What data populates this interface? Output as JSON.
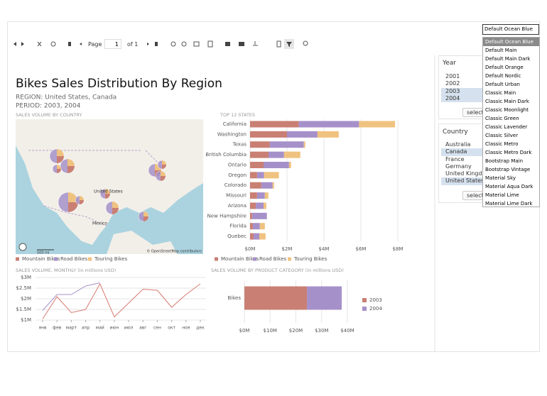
{
  "theme_selector": {
    "selected": "Default Ocean Blue",
    "options": [
      "Default Ocean Blue",
      "Default Main",
      "Default Main Dark",
      "Default Orange",
      "Default Nordic",
      "Default Urban",
      "Classic Main",
      "Classic Main Dark",
      "Classic Moonlight",
      "Classic Green",
      "Classic Lavender",
      "Classic Silver",
      "Classic Metro",
      "Classic Metro Dark",
      "Bootstrap Main",
      "Bootstrap Vintage",
      "Material Sky",
      "Material Aqua Dark",
      "Material Lime",
      "Material Lime Dark"
    ]
  },
  "toolbar": {
    "page_label": "Page",
    "page_number": 1,
    "page_count_label": "of 1"
  },
  "report": {
    "title": "Bikes Sales Distribution By Region",
    "region": "REGION: United States, Canada",
    "period": "PERIOD: 2003, 2004"
  },
  "parameters": {
    "year": {
      "label": "Year",
      "options": [
        "2001",
        "2002",
        "2003",
        "2004"
      ],
      "selected": [
        false,
        false,
        true,
        true
      ],
      "button": "select a"
    },
    "country": {
      "label": "Country",
      "options": [
        "Australia",
        "Canada",
        "France",
        "Germany",
        "United Kingdom",
        "United States"
      ],
      "selected": [
        false,
        true,
        false,
        false,
        false,
        true
      ],
      "button": "select a"
    }
  },
  "chart_data": [
    {
      "type": "map",
      "title": "SALES VOLUME BY COUNTRY",
      "labels": [
        "United States",
        "Mexico"
      ],
      "scale": "500 mi",
      "attribution": "© OpenStreetMap contributors",
      "series": [
        {
          "name": "Mountain Bikes",
          "color": "#c97f73"
        },
        {
          "name": "Road Bikes",
          "color": "#a690c9"
        },
        {
          "name": "Touring Bikes",
          "color": "#f0c27f"
        }
      ]
    },
    {
      "type": "hbar_stacked",
      "title": "TOP 12 STATES",
      "categories": [
        "California",
        "Washington",
        "Texas",
        "British Columbia",
        "Ontario",
        "Oregon",
        "Colorado",
        "Missouri",
        "Arizona",
        "New Hampshire",
        "Florida",
        "Quebec"
      ],
      "series": [
        {
          "name": "Mountain Bikes",
          "color": "#c97f73",
          "values": [
            2.64,
            2.0,
            1.07,
            1.0,
            0.73,
            0.38,
            0.61,
            0.38,
            0.31,
            0.11,
            0.15,
            0.19
          ]
        },
        {
          "name": "Road Bikes",
          "color": "#a690c9",
          "values": [
            3.26,
            1.65,
            1.84,
            0.84,
            1.38,
            0.38,
            0.61,
            0.42,
            0.42,
            0.8,
            0.38,
            0.31
          ]
        },
        {
          "name": "Touring Bikes",
          "color": "#f0c27f",
          "values": [
            1.95,
            1.15,
            0.08,
            0.88,
            0.11,
            0.8,
            0.08,
            0.19,
            0.15,
            0,
            0.27,
            0.34
          ]
        }
      ],
      "xlim": [
        0,
        8
      ],
      "xticks": [
        {
          "value": 0,
          "label": "$0M"
        },
        {
          "value": 2,
          "label": "$2M"
        },
        {
          "value": 4,
          "label": "$4M"
        },
        {
          "value": 6,
          "label": "$6M"
        },
        {
          "value": 8,
          "label": "$8M"
        }
      ],
      "grid": true
    },
    {
      "type": "line",
      "title": "SALES VOLUME, MONTHLY (in millions USD)",
      "categories": [
        "янв",
        "фев",
        "март",
        "апр",
        "май",
        "июн",
        "июл",
        "авг",
        "сен",
        "окт",
        "ноя",
        "дек"
      ],
      "series": [
        {
          "name": "2003",
          "color": "#d77b72",
          "values": [
            1.05,
            2.1,
            1.35,
            1.5,
            2.7,
            1.15,
            1.8,
            2.45,
            2.4,
            1.6,
            2.2,
            2.7
          ]
        },
        {
          "name": "2004",
          "color": "#a690c9",
          "values": [
            1.45,
            2.2,
            2.2,
            2.6,
            2.75,
            null,
            null,
            null,
            null,
            null,
            null,
            null
          ]
        }
      ],
      "ylim": [
        1,
        3
      ],
      "yticks": [
        {
          "value": 1,
          "label": "$1M"
        },
        {
          "value": 1.5,
          "label": "$1.5M"
        },
        {
          "value": 2,
          "label": "$2M"
        },
        {
          "value": 2.5,
          "label": "$2.5M"
        },
        {
          "value": 3,
          "label": "$3M"
        }
      ],
      "grid": true
    },
    {
      "type": "hbar_stacked",
      "title": "SALES VOLUME BY PRODUCT CATEGORY (in millions USD)",
      "categories": [
        "Bikes"
      ],
      "series": [
        {
          "name": "2003",
          "color": "#c97f73",
          "values": [
            24.3
          ]
        },
        {
          "name": "2004",
          "color": "#a690c9",
          "values": [
            13.5
          ]
        }
      ],
      "xlim": [
        0,
        40
      ],
      "xticks": [
        {
          "value": 0,
          "label": "$0M"
        },
        {
          "value": 10,
          "label": "$10M"
        },
        {
          "value": 20,
          "label": "$20M"
        },
        {
          "value": 30,
          "label": "$30M"
        },
        {
          "value": 40,
          "label": "$40M"
        }
      ],
      "grid": true
    }
  ]
}
